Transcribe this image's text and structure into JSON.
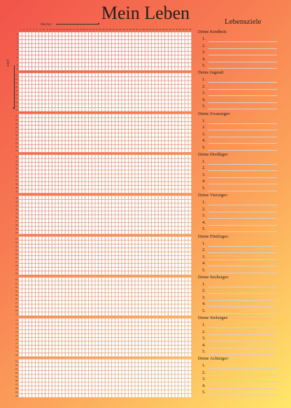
{
  "header": {
    "title": "Mein Leben",
    "subtitle": "Lebensziele"
  },
  "axes": {
    "weeks_label": "Wochen",
    "years_label": "Jahre",
    "weeks_total": 52,
    "years_total": 90
  },
  "colors": {
    "cell_fill": "#ffffff",
    "cell_stroke": "#c9a59a",
    "label_color": "#333333"
  },
  "decades": [
    {
      "title": "Deine Kindheit:"
    },
    {
      "title": "Deine Jugend:"
    },
    {
      "title": "Deine Zwanziger:"
    },
    {
      "title": "Deine Dreißiger:"
    },
    {
      "title": "Deine Vierziger:"
    },
    {
      "title": "Deine Fünfziger:"
    },
    {
      "title": "Deine Sechziger:"
    },
    {
      "title": "Deine Siebziger:"
    },
    {
      "title": "Deine Achtziger:"
    }
  ],
  "goal_numbers": [
    "1.",
    "2.",
    "3.",
    "4.",
    "5."
  ]
}
